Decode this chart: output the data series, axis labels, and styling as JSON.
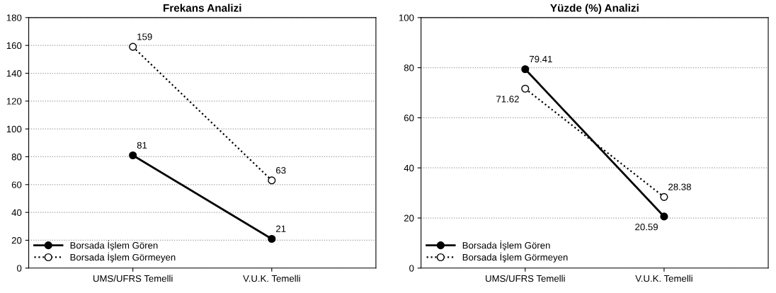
{
  "chart_data": [
    {
      "type": "line",
      "title": "Frekans Analizi",
      "categories": [
        "UMS/UFRS Temelli",
        "V.U.K. Temelli"
      ],
      "series": [
        {
          "name": "Borsada İşlem Gören",
          "color": "#000000",
          "line_style": "solid",
          "values": [
            81,
            21
          ]
        },
        {
          "name": "Borsada İşlem Görmeyen",
          "color": "#000000",
          "line_style": "dotted",
          "values": [
            159,
            63
          ]
        }
      ],
      "ylim": [
        0,
        180
      ],
      "yticks": [
        0,
        20,
        40,
        60,
        80,
        100,
        120,
        140,
        160,
        180
      ],
      "grid": "y",
      "legend": "bottom left",
      "marker": "circle",
      "data_labels": true
    },
    {
      "type": "line",
      "title": "Yüzde (%) Analizi",
      "categories": [
        "UMS/UFRS Temelli",
        "V.U.K. Temelli"
      ],
      "series": [
        {
          "name": "Borsada İşlem Gören",
          "color": "#000000",
          "line_style": "solid",
          "values": [
            79.41,
            20.59
          ]
        },
        {
          "name": "Borsada İşlem Görmeyen",
          "color": "#000000",
          "line_style": "dotted",
          "values": [
            71.62,
            28.38
          ]
        }
      ],
      "ylim": [
        0,
        100
      ],
      "yticks": [
        0,
        20,
        40,
        60,
        80,
        100
      ],
      "grid": "y",
      "legend": "bottom left",
      "marker": "circle",
      "data_labels": true
    }
  ]
}
